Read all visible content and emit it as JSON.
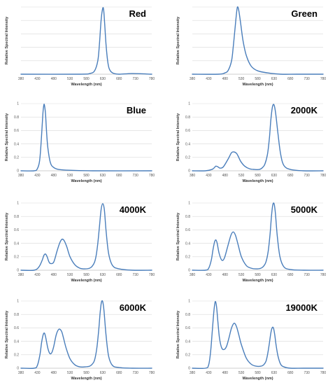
{
  "style": {
    "line_color": "#4a7ebb",
    "grid_color": "#d9d9d9"
  },
  "chart_data": [
    {
      "type": "line",
      "title": "Red",
      "xlabel": "Wavelength (nm)",
      "ylabel": "Relative Spectral Intensity",
      "xlim": [
        380,
        780
      ],
      "ylim": [
        0,
        1
      ],
      "xticks": [
        "380",
        "430",
        "480",
        "530",
        "580",
        "630",
        "680",
        "730",
        "780"
      ],
      "yticks": [],
      "grid": true,
      "series": [
        {
          "x": [
            380,
            560,
            590,
            605,
            615,
            620,
            625,
            630,
            633,
            636,
            640,
            645,
            650,
            660,
            680,
            720,
            780
          ],
          "y": [
            0,
            0,
            0.01,
            0.05,
            0.2,
            0.45,
            0.8,
            0.98,
            0.95,
            0.75,
            0.45,
            0.2,
            0.08,
            0.02,
            0,
            0.01,
            0
          ]
        }
      ]
    },
    {
      "type": "line",
      "title": "Green",
      "xlabel": "Wavelength (nm)",
      "ylabel": "Relative Spectral Intensity",
      "xlim": [
        380,
        780
      ],
      "ylim": [
        0,
        1
      ],
      "xticks": [
        "380",
        "430",
        "480",
        "530",
        "580",
        "630",
        "680",
        "730",
        "780"
      ],
      "yticks": [],
      "grid": true,
      "series": [
        {
          "x": [
            380,
            460,
            480,
            490,
            500,
            505,
            510,
            515,
            518,
            522,
            528,
            535,
            545,
            560,
            580,
            610,
            650,
            700,
            780
          ],
          "y": [
            0,
            0,
            0.02,
            0.06,
            0.2,
            0.4,
            0.65,
            0.9,
            1.0,
            0.95,
            0.75,
            0.5,
            0.28,
            0.12,
            0.05,
            0.02,
            0,
            0,
            0
          ]
        }
      ]
    },
    {
      "type": "line",
      "title": "Blue",
      "xlabel": "Wavelength (nm)",
      "ylabel": "Relative Spectral Intensity",
      "xlim": [
        380,
        780
      ],
      "ylim": [
        0,
        1
      ],
      "xticks": [
        "380",
        "430",
        "480",
        "530",
        "580",
        "630",
        "680",
        "730",
        "780"
      ],
      "yticks": [
        "0",
        "0.2",
        "0.4",
        "0.6",
        "0.8",
        "1"
      ],
      "grid": true,
      "series": [
        {
          "x": [
            380,
            420,
            430,
            437,
            442,
            447,
            450,
            452,
            455,
            458,
            462,
            470,
            480,
            495,
            520,
            600,
            780
          ],
          "y": [
            0,
            0,
            0.03,
            0.15,
            0.45,
            0.85,
            0.98,
            0.97,
            0.85,
            0.6,
            0.35,
            0.12,
            0.05,
            0.02,
            0.01,
            0,
            0
          ]
        }
      ]
    },
    {
      "type": "line",
      "title": "2000K",
      "xlabel": "Wavelength (nm)",
      "ylabel": "Relative Spectral Intensity",
      "xlim": [
        380,
        780
      ],
      "ylim": [
        0,
        1
      ],
      "xticks": [
        "380",
        "430",
        "480",
        "530",
        "580",
        "630",
        "680",
        "730",
        "780"
      ],
      "yticks": [
        "0",
        "0.2",
        "0.4",
        "0.6",
        "0.8",
        "1"
      ],
      "grid": true,
      "series": [
        {
          "x": [
            380,
            420,
            440,
            448,
            452,
            458,
            465,
            475,
            490,
            500,
            508,
            515,
            520,
            528,
            540,
            555,
            570,
            585,
            595,
            602,
            610,
            616,
            620,
            625,
            630,
            635,
            642,
            650,
            660,
            680,
            720,
            780
          ],
          "y": [
            0,
            0,
            0.02,
            0.05,
            0.07,
            0.06,
            0.04,
            0.06,
            0.18,
            0.27,
            0.28,
            0.26,
            0.22,
            0.14,
            0.07,
            0.03,
            0.02,
            0.02,
            0.05,
            0.1,
            0.25,
            0.5,
            0.75,
            0.95,
            0.98,
            0.85,
            0.55,
            0.25,
            0.08,
            0.02,
            0,
            0
          ]
        }
      ]
    },
    {
      "type": "line",
      "title": "4000K",
      "xlabel": "Wavelength (nm)",
      "ylabel": "Relative Spectral Intensity",
      "xlim": [
        380,
        780
      ],
      "ylim": [
        0,
        1
      ],
      "xticks": [
        "380",
        "430",
        "480",
        "530",
        "580",
        "630",
        "680",
        "730",
        "780"
      ],
      "yticks": [
        "0",
        "0.2",
        "0.4",
        "0.6",
        "0.8",
        "1"
      ],
      "grid": true,
      "series": [
        {
          "x": [
            380,
            420,
            435,
            445,
            450,
            455,
            460,
            465,
            470,
            480,
            490,
            498,
            505,
            512,
            520,
            530,
            545,
            560,
            575,
            590,
            598,
            605,
            610,
            615,
            620,
            625,
            630,
            635,
            640,
            648,
            660,
            680,
            720,
            780
          ],
          "y": [
            0,
            0,
            0.05,
            0.15,
            0.22,
            0.24,
            0.2,
            0.13,
            0.1,
            0.12,
            0.28,
            0.4,
            0.46,
            0.44,
            0.35,
            0.2,
            0.08,
            0.03,
            0.02,
            0.03,
            0.06,
            0.12,
            0.22,
            0.4,
            0.65,
            0.9,
            0.99,
            0.9,
            0.6,
            0.25,
            0.07,
            0.02,
            0,
            0
          ]
        }
      ]
    },
    {
      "type": "line",
      "title": "5000K",
      "xlabel": "Wavelength (nm)",
      "ylabel": "Relative Spectral Intensity",
      "xlim": [
        380,
        780
      ],
      "ylim": [
        0,
        1
      ],
      "xticks": [
        "380",
        "430",
        "480",
        "530",
        "580",
        "630",
        "680",
        "730",
        "780"
      ],
      "yticks": [
        "0",
        "0.2",
        "0.4",
        "0.6",
        "0.8",
        "1"
      ],
      "grid": true,
      "series": [
        {
          "x": [
            380,
            420,
            430,
            438,
            443,
            448,
            452,
            456,
            462,
            470,
            478,
            488,
            498,
            505,
            512,
            520,
            530,
            545,
            560,
            575,
            590,
            598,
            605,
            612,
            618,
            622,
            626,
            630,
            634,
            640,
            648,
            660,
            680,
            720,
            780
          ],
          "y": [
            0,
            0,
            0.03,
            0.15,
            0.3,
            0.42,
            0.45,
            0.4,
            0.25,
            0.15,
            0.18,
            0.35,
            0.52,
            0.57,
            0.52,
            0.38,
            0.2,
            0.07,
            0.03,
            0.02,
            0.03,
            0.06,
            0.12,
            0.28,
            0.55,
            0.8,
            0.97,
            0.99,
            0.85,
            0.5,
            0.2,
            0.05,
            0.01,
            0,
            0
          ]
        }
      ]
    },
    {
      "type": "line",
      "title": "6000K",
      "xlabel": "Wavelength (nm)",
      "ylabel": "Relative Spectral Intensity",
      "xlim": [
        380,
        780
      ],
      "ylim": [
        0,
        1
      ],
      "xticks": [
        "380",
        "430",
        "480",
        "530",
        "580",
        "630",
        "680",
        "730",
        "780"
      ],
      "yticks": [
        "0",
        "0.2",
        "0.4",
        "0.6",
        "0.8",
        "1"
      ],
      "grid": true,
      "series": [
        {
          "x": [
            380,
            420,
            430,
            438,
            443,
            448,
            452,
            456,
            462,
            468,
            474,
            480,
            488,
            496,
            504,
            510,
            518,
            530,
            545,
            560,
            575,
            590,
            598,
            605,
            612,
            618,
            622,
            626,
            630,
            634,
            640,
            648,
            660,
            680,
            720,
            780
          ],
          "y": [
            0,
            0,
            0.04,
            0.2,
            0.38,
            0.5,
            0.52,
            0.45,
            0.3,
            0.22,
            0.23,
            0.32,
            0.5,
            0.58,
            0.55,
            0.45,
            0.3,
            0.14,
            0.05,
            0.02,
            0.02,
            0.03,
            0.06,
            0.12,
            0.3,
            0.58,
            0.82,
            0.98,
            0.99,
            0.85,
            0.5,
            0.18,
            0.04,
            0.01,
            0,
            0
          ]
        }
      ]
    },
    {
      "type": "line",
      "title": "19000K",
      "xlabel": "Wavelength (nm)",
      "ylabel": "Relative Spectral Intensity",
      "xlim": [
        380,
        780
      ],
      "ylim": [
        0,
        1
      ],
      "xticks": [
        "380",
        "430",
        "480",
        "530",
        "580",
        "630",
        "680",
        "730",
        "780"
      ],
      "yticks": [
        "0",
        "0.2",
        "0.4",
        "0.6",
        "0.8",
        "1"
      ],
      "grid": true,
      "series": [
        {
          "x": [
            380,
            420,
            430,
            436,
            441,
            446,
            450,
            454,
            458,
            463,
            470,
            478,
            485,
            492,
            500,
            508,
            515,
            522,
            530,
            545,
            560,
            575,
            590,
            598,
            605,
            610,
            615,
            620,
            624,
            628,
            632,
            636,
            642,
            650,
            660,
            680,
            720,
            780
          ],
          "y": [
            0,
            0,
            0.05,
            0.25,
            0.55,
            0.85,
            0.99,
            0.92,
            0.7,
            0.45,
            0.3,
            0.28,
            0.33,
            0.45,
            0.6,
            0.67,
            0.62,
            0.5,
            0.35,
            0.15,
            0.06,
            0.03,
            0.03,
            0.05,
            0.1,
            0.2,
            0.35,
            0.52,
            0.6,
            0.6,
            0.5,
            0.35,
            0.18,
            0.06,
            0.02,
            0,
            0,
            0
          ]
        }
      ]
    }
  ]
}
